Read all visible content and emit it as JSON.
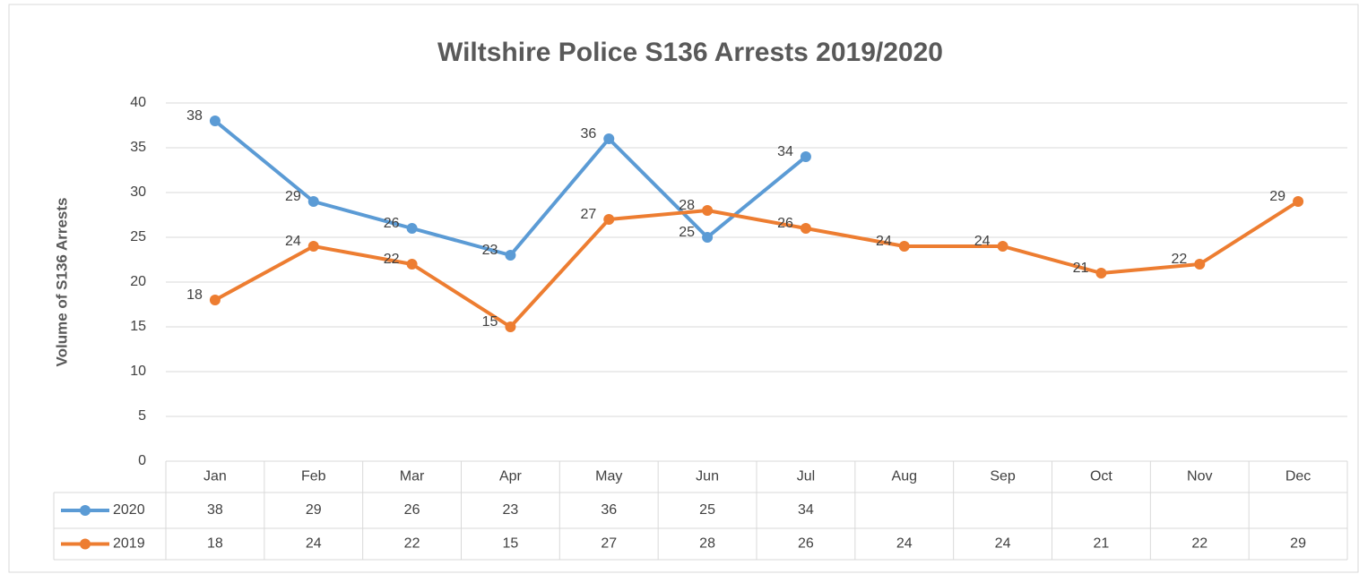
{
  "chart_data": {
    "type": "line",
    "title": "Wiltshire Police S136 Arrests 2019/2020",
    "y_label": "Volume of S136 Arrests",
    "categories": [
      "Jan",
      "Feb",
      "Mar",
      "Apr",
      "May",
      "Jun",
      "Jul",
      "Aug",
      "Sep",
      "Oct",
      "Nov",
      "Dec"
    ],
    "series": [
      {
        "name": "2020",
        "color": "#5b9bd5",
        "values": [
          38,
          29,
          26,
          23,
          36,
          25,
          34,
          null,
          null,
          null,
          null,
          null
        ]
      },
      {
        "name": "2019",
        "color": "#ed7d31",
        "values": [
          18,
          24,
          22,
          15,
          27,
          28,
          26,
          24,
          24,
          21,
          22,
          29
        ]
      }
    ],
    "ylim": [
      0,
      40
    ],
    "yticks": [
      0,
      5,
      10,
      15,
      20,
      25,
      30,
      35,
      40
    ],
    "grid": true,
    "data_table": true
  }
}
